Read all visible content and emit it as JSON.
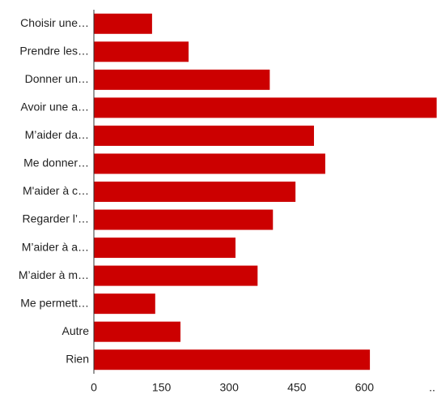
{
  "chart_data": {
    "type": "bar",
    "orientation": "horizontal",
    "categories": [
      "Choisir une…",
      "Prendre les…",
      "Donner un…",
      "Avoir une a…",
      "M’aider da…",
      "Me donner…",
      "M'aider à c…",
      "Regarder l’…",
      "M’aider à a…",
      "M’aider à m…",
      "Me permett…",
      "Autre",
      "Rien"
    ],
    "values": [
      129,
      210,
      390,
      760,
      488,
      513,
      447,
      397,
      314,
      363,
      136,
      192,
      612
    ],
    "color": "#cc0000",
    "xlim": [
      0,
      750
    ],
    "xticks": [
      0,
      150,
      300,
      450,
      600,
      {
        "value": 750,
        "label": ".."
      }
    ]
  }
}
